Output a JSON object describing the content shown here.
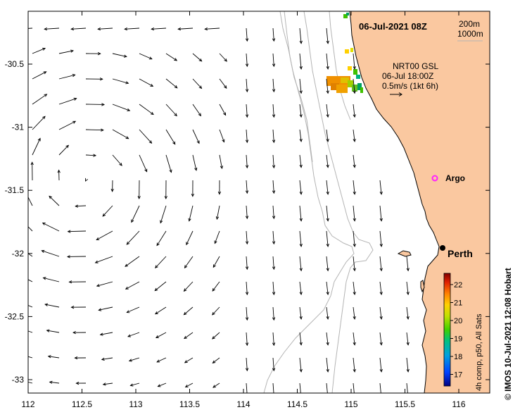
{
  "map": {
    "date_title": "06-Jul-2021 08Z",
    "depth_labels": [
      "200m",
      "1000m"
    ],
    "current_legend": [
      "NRT00 GSL",
      "06-Jul 18:00Z",
      "0.5m/s (1kt 6h)"
    ],
    "argo_label": "Argo",
    "city_label": "Perth",
    "colorbar_title": "4h comp, p50, All Sats",
    "colorbar_ticks": [
      "22",
      "21",
      "20",
      "19",
      "18",
      "17"
    ],
    "credit": "© IMOS 10-Jul-2021 12:08 Hobart",
    "x_ticks": [
      "112",
      "112.5",
      "113",
      "113.5",
      "114",
      "114.5",
      "115",
      "115.5",
      "116"
    ],
    "y_ticks": [
      "-30.5",
      "-31",
      "-31.5",
      "-32",
      "-32.5",
      "-33"
    ],
    "colors": {
      "land": "#FAC8A0",
      "isobath": "#B4B4B4",
      "argo": "#FF22FF"
    }
  }
}
